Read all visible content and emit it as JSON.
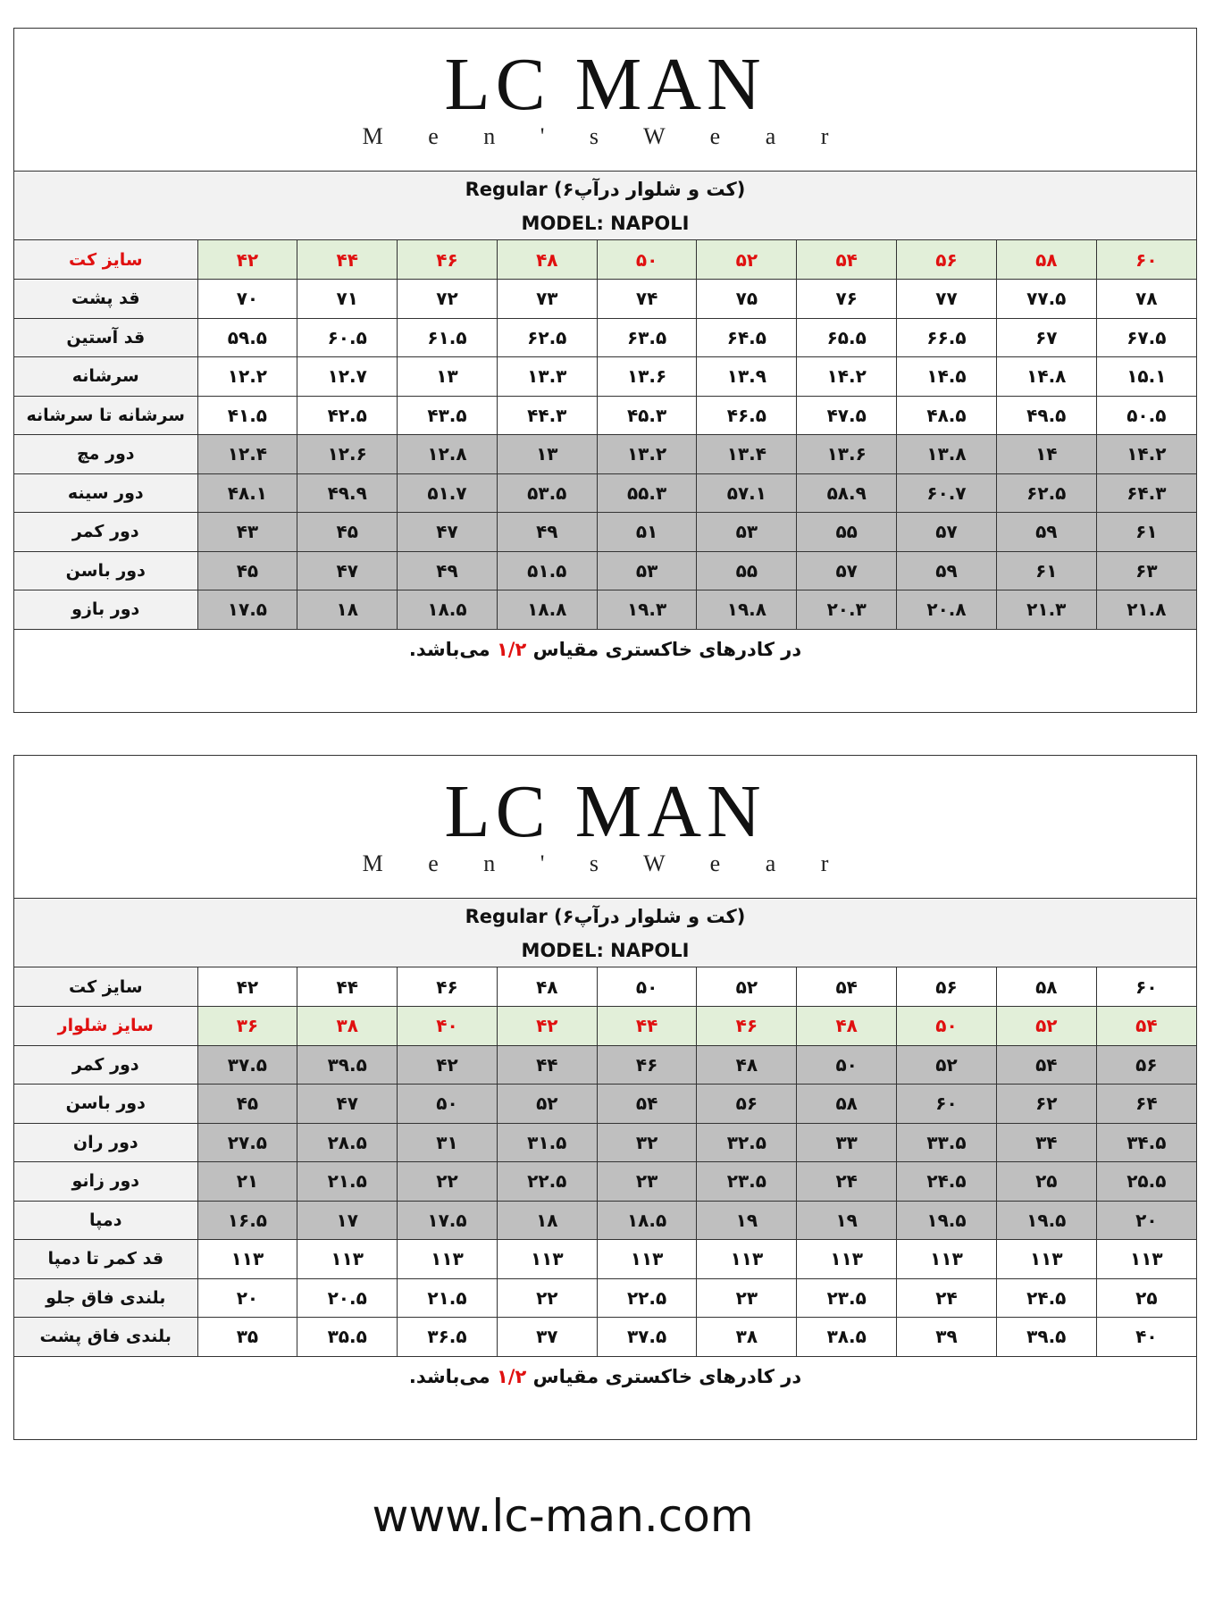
{
  "logo": {
    "brand": "LC MAN",
    "tagline": "M e n ' s   W e a r"
  },
  "colors": {
    "accent_red": "#e01010",
    "size_row_green": "#e2efd9",
    "half_scale_gray": "#bfbfbf"
  },
  "jacket_table": {
    "title": "(کت و شلوار درآپ۶) Regular",
    "model": "MODEL: NAPOLI",
    "header": {
      "label": "سایز کت",
      "sizes": [
        "۴۲",
        "۴۴",
        "۴۶",
        "۴۸",
        "۵۰",
        "۵۲",
        "۵۴",
        "۵۶",
        "۵۸",
        "۶۰"
      ]
    },
    "rows": [
      {
        "label": "قد پشت",
        "gray": false,
        "values": [
          "۷۰",
          "۷۱",
          "۷۲",
          "۷۳",
          "۷۴",
          "۷۵",
          "۷۶",
          "۷۷",
          "۷۷.۵",
          "۷۸"
        ]
      },
      {
        "label": "قد آستین",
        "gray": false,
        "values": [
          "۵۹.۵",
          "۶۰.۵",
          "۶۱.۵",
          "۶۲.۵",
          "۶۳.۵",
          "۶۴.۵",
          "۶۵.۵",
          "۶۶.۵",
          "۶۷",
          "۶۷.۵"
        ]
      },
      {
        "label": "سرشانه",
        "gray": false,
        "values": [
          "۱۲.۲",
          "۱۲.۷",
          "۱۳",
          "۱۳.۳",
          "۱۳.۶",
          "۱۳.۹",
          "۱۴.۲",
          "۱۴.۵",
          "۱۴.۸",
          "۱۵.۱"
        ]
      },
      {
        "label": "سرشانه تا سرشانه",
        "gray": false,
        "values": [
          "۴۱.۵",
          "۴۲.۵",
          "۴۳.۵",
          "۴۴.۳",
          "۴۵.۳",
          "۴۶.۵",
          "۴۷.۵",
          "۴۸.۵",
          "۴۹.۵",
          "۵۰.۵"
        ]
      },
      {
        "label": "دور مچ",
        "gray": true,
        "values": [
          "۱۲.۴",
          "۱۲.۶",
          "۱۲.۸",
          "۱۳",
          "۱۳.۲",
          "۱۳.۴",
          "۱۳.۶",
          "۱۳.۸",
          "۱۴",
          "۱۴.۲"
        ]
      },
      {
        "label": "دور سینه",
        "gray": true,
        "values": [
          "۴۸.۱",
          "۴۹.۹",
          "۵۱.۷",
          "۵۳.۵",
          "۵۵.۳",
          "۵۷.۱",
          "۵۸.۹",
          "۶۰.۷",
          "۶۲.۵",
          "۶۴.۳"
        ]
      },
      {
        "label": "دور کمر",
        "gray": true,
        "values": [
          "۴۳",
          "۴۵",
          "۴۷",
          "۴۹",
          "۵۱",
          "۵۳",
          "۵۵",
          "۵۷",
          "۵۹",
          "۶۱"
        ]
      },
      {
        "label": "دور باسن",
        "gray": true,
        "values": [
          "۴۵",
          "۴۷",
          "۴۹",
          "۵۱.۵",
          "۵۳",
          "۵۵",
          "۵۷",
          "۵۹",
          "۶۱",
          "۶۳"
        ]
      },
      {
        "label": "دور بازو",
        "gray": true,
        "values": [
          "۱۷.۵",
          "۱۸",
          "۱۸.۵",
          "۱۸.۸",
          "۱۹.۳",
          "۱۹.۸",
          "۲۰.۳",
          "۲۰.۸",
          "۲۱.۳",
          "۲۱.۸"
        ]
      }
    ],
    "note": {
      "before": "در کادرهای خاکستری مقیاس ",
      "scale": "۱/۲",
      "after": " می‌باشد."
    }
  },
  "pants_table": {
    "title": "(کت و شلوار درآپ۶) Regular",
    "model": "MODEL: NAPOLI",
    "jacket_row": {
      "label": "سایز کت",
      "sizes": [
        "۴۲",
        "۴۴",
        "۴۶",
        "۴۸",
        "۵۰",
        "۵۲",
        "۵۴",
        "۵۶",
        "۵۸",
        "۶۰"
      ]
    },
    "header": {
      "label": "سایز شلوار",
      "sizes": [
        "۳۶",
        "۳۸",
        "۴۰",
        "۴۲",
        "۴۴",
        "۴۶",
        "۴۸",
        "۵۰",
        "۵۲",
        "۵۴"
      ]
    },
    "rows": [
      {
        "label": "دور کمر",
        "gray": true,
        "values": [
          "۳۷.۵",
          "۳۹.۵",
          "۴۲",
          "۴۴",
          "۴۶",
          "۴۸",
          "۵۰",
          "۵۲",
          "۵۴",
          "۵۶"
        ]
      },
      {
        "label": "دور باسن",
        "gray": true,
        "values": [
          "۴۵",
          "۴۷",
          "۵۰",
          "۵۲",
          "۵۴",
          "۵۶",
          "۵۸",
          "۶۰",
          "۶۲",
          "۶۴"
        ]
      },
      {
        "label": "دور ران",
        "gray": true,
        "values": [
          "۲۷.۵",
          "۲۸.۵",
          "۳۱",
          "۳۱.۵",
          "۳۲",
          "۳۲.۵",
          "۳۳",
          "۳۳.۵",
          "۳۴",
          "۳۴.۵"
        ]
      },
      {
        "label": "دور زانو",
        "gray": true,
        "values": [
          "۲۱",
          "۲۱.۵",
          "۲۲",
          "۲۲.۵",
          "۲۳",
          "۲۳.۵",
          "۲۴",
          "۲۴.۵",
          "۲۵",
          "۲۵.۵"
        ]
      },
      {
        "label": "دمپا",
        "gray": true,
        "values": [
          "۱۶.۵",
          "۱۷",
          "۱۷.۵",
          "۱۸",
          "۱۸.۵",
          "۱۹",
          "۱۹",
          "۱۹.۵",
          "۱۹.۵",
          "۲۰"
        ]
      },
      {
        "label": "قد کمر تا دمپا",
        "gray": false,
        "values": [
          "۱۱۳",
          "۱۱۳",
          "۱۱۳",
          "۱۱۳",
          "۱۱۳",
          "۱۱۳",
          "۱۱۳",
          "۱۱۳",
          "۱۱۳",
          "۱۱۳"
        ]
      },
      {
        "label": "بلندی فاق جلو",
        "gray": false,
        "values": [
          "۲۰",
          "۲۰.۵",
          "۲۱.۵",
          "۲۲",
          "۲۲.۵",
          "۲۳",
          "۲۳.۵",
          "۲۴",
          "۲۴.۵",
          "۲۵"
        ]
      },
      {
        "label": "بلندی فاق پشت",
        "gray": false,
        "values": [
          "۳۵",
          "۳۵.۵",
          "۳۶.۵",
          "۳۷",
          "۳۷.۵",
          "۳۸",
          "۳۸.۵",
          "۳۹",
          "۳۹.۵",
          "۴۰"
        ]
      }
    ],
    "note": {
      "before": "در کادرهای خاکستری مقیاس ",
      "scale": "۱/۲",
      "after": " می‌باشد."
    }
  },
  "footer": {
    "url": "www.lc-man.com"
  }
}
